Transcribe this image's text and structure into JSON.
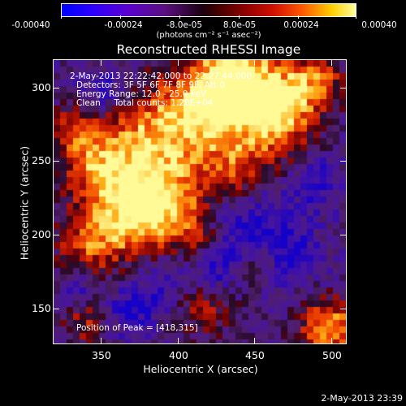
{
  "colorbar": {
    "labels": [
      "-0.00040",
      "-0.00024",
      "-8.0e-05",
      "8.0e-05",
      "0.00024",
      "0.00040"
    ],
    "units_text": "(photons cm⁻² s⁻¹ asec⁻²)"
  },
  "title": "Reconstructed RHESSI Image",
  "overlay": {
    "time_range": "2-May-2013 22:22:42.000 to 22:27:44.000",
    "detectors": "Detectors: 3F 5F 6F 7F 8F 9F, Att 0",
    "energy": "Energy Range: 12.0 - 25.0 keV",
    "clean": "Clean     Total counts: 1.28E+04",
    "peak": "Position of Peak = [418,315]"
  },
  "axes": {
    "xlabel": "Heliocentric X (arcsec)",
    "ylabel": "Heliocentric Y (arcsec)",
    "x_ticks": [
      "350",
      "400",
      "450",
      "500"
    ],
    "y_ticks": [
      "150",
      "200",
      "250",
      "300"
    ],
    "x_tick_values": [
      350,
      400,
      450,
      500
    ],
    "y_tick_values": [
      150,
      200,
      250,
      300
    ],
    "x_range": [
      319,
      510
    ],
    "y_range": [
      126,
      319
    ]
  },
  "timestamp": "2-May-2013 23:39"
}
